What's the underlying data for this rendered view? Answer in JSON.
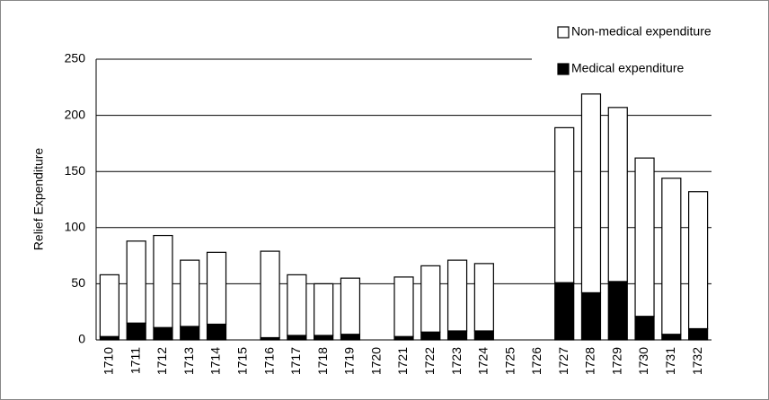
{
  "chart_data": {
    "type": "stacked-bar",
    "y_label": "Relief Expenditure",
    "categories": [
      "1710",
      "1711",
      "1712",
      "1713",
      "1714",
      "1715",
      "1716",
      "1717",
      "1718",
      "1719",
      "1720",
      "1721",
      "1722",
      "1723",
      "1724",
      "1725",
      "1726",
      "1727",
      "1728",
      "1729",
      "1730",
      "1731",
      "1732"
    ],
    "series": [
      {
        "name": "Medical expenditure",
        "color": "#000000",
        "values": [
          3,
          15,
          11,
          12,
          14,
          null,
          2,
          4,
          4,
          5,
          null,
          3,
          7,
          8,
          8,
          null,
          null,
          51,
          42,
          52,
          21,
          5,
          10
        ]
      },
      {
        "name": "Non-medical expenditure",
        "color": "#ffffff",
        "values": [
          55,
          73,
          82,
          59,
          64,
          null,
          77,
          54,
          46,
          50,
          null,
          53,
          59,
          63,
          60,
          null,
          null,
          138,
          177,
          155,
          141,
          139,
          122
        ]
      }
    ],
    "ylim": [
      0,
      250
    ],
    "yticks": [
      0,
      50,
      100,
      150,
      200,
      250
    ],
    "grid": true,
    "legend": "top-right"
  }
}
